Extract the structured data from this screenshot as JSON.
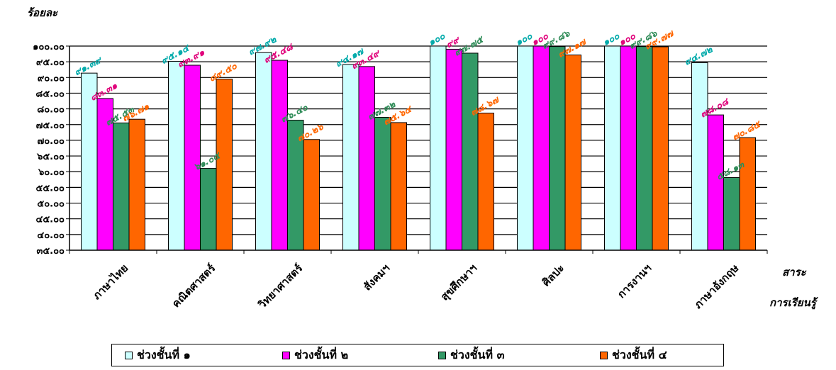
{
  "chart_data": {
    "type": "bar",
    "ylabel": "ร้อยละ",
    "xlabel": [
      "สาระ",
      "การเรียนรู้"
    ],
    "ylim": [
      35,
      100
    ],
    "yticks": [
      35,
      40,
      45,
      50,
      55,
      60,
      65,
      70,
      75,
      80,
      85,
      90,
      95,
      100
    ],
    "ytick_labels": [
      "๓๕.๐๐",
      "๔๐.๐๐",
      "๔๕.๐๐",
      "๕๐.๐๐",
      "๕๕.๐๐",
      "๖๐.๐๐",
      "๖๕.๐๐",
      "๗๐.๐๐",
      "๗๕.๐๐",
      "๘๐.๐๐",
      "๘๕.๐๐",
      "๙๐.๐๐",
      "๙๕.๐๐",
      "๑๐๐.๐๐"
    ],
    "grid": true,
    "legend_position": "bottom",
    "categories": [
      "ภาษาไทย",
      "คณิตศาสตร์",
      "วิทยาศาสตร์",
      "สังคมฯ",
      "สุขศึกษาฯ",
      "ศิลปะ",
      "การงานฯ",
      "ภาษาอังกฤษ"
    ],
    "series": [
      {
        "name": "ช่วงชั้นที่ ๑",
        "color": "#ccffff",
        "label_color": "#00aaaa",
        "values": [
          91.39,
          95.14,
          97.92,
          94.17,
          100,
          100,
          100,
          94.72
        ],
        "labels": [
          "๙๑.๓๙",
          "๙๕.๑๔",
          "๙๗.๙๒",
          "๙๔.๑๗",
          "๑๐๐",
          "๑๐๐",
          "๑๐๐",
          "๙๔.๗๒"
        ]
      },
      {
        "name": "ช่วงชั้นที่ ๒",
        "color": "#ff00ff",
        "label_color": "#e0007a",
        "values": [
          83.31,
          93.91,
          95.48,
          93.49,
          99,
          100,
          100,
          78.08
        ],
        "labels": [
          "๘๓.๓๑",
          "๙๓.๙๑",
          "๙๕.๔๘",
          "๙๓.๔๙",
          "๙๙",
          "๑๐๐",
          "๑๐๐",
          "๗๘.๐๘"
        ]
      },
      {
        "name": "ช่วงชั้นที่ ๓",
        "color": "#339966",
        "label_color": "#2e8b57",
        "values": [
          75.53,
          61.05,
          76.4,
          77.32,
          97.75,
          99.86,
          99.86,
          58.13
        ],
        "labels": [
          "๗๕.๕๓",
          "๖๑.๐๕",
          "๗๖.๔๐",
          "๗๗.๓๒",
          "๙๗.๗๕",
          "๙๙.๘๖",
          "๙๙.๘๖",
          "๕๘.๑๓"
        ]
      },
      {
        "name": "ช่วงชั้นที่ ๔",
        "color": "#ff6600",
        "label_color": "#ff6600",
        "values": [
          76.71,
          89.5,
          70.26,
          75.64,
          78.67,
          97.17,
          99.77,
          70.85
        ],
        "labels": [
          "๗๖.๗๑",
          "๘๙.๕๐",
          "๗๐.๒๖",
          "๗๕.๖๔",
          "๗๘.๖๗",
          "๙๗.๑๗",
          "๙๙.๗๗",
          "๗๐.๘๕"
        ]
      }
    ]
  }
}
